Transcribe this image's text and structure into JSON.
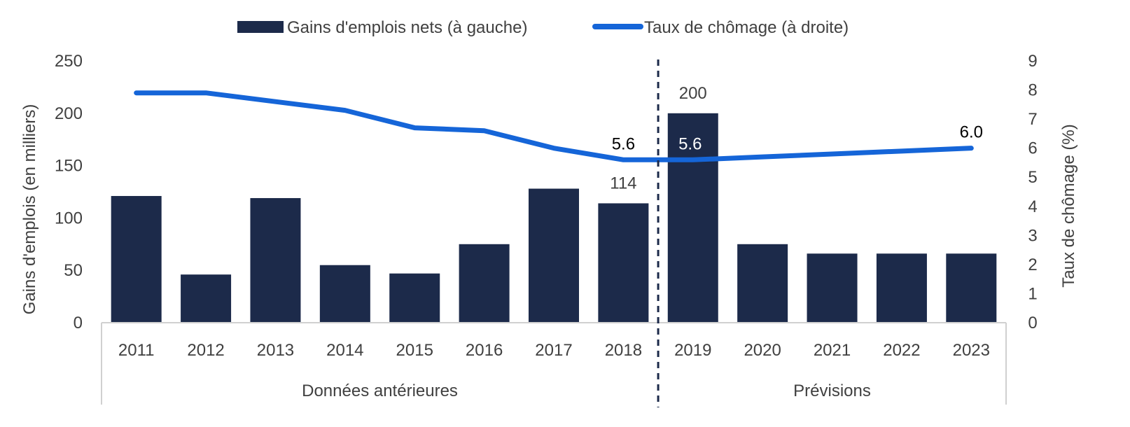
{
  "chart_data": {
    "type": "bar",
    "categories": [
      "2011",
      "2012",
      "2013",
      "2014",
      "2015",
      "2016",
      "2017",
      "2018",
      "2019",
      "2020",
      "2021",
      "2022",
      "2023"
    ],
    "series": [
      {
        "name": "Gains d'emplois nets (à gauche)",
        "type": "bar",
        "axis": "left",
        "color": "#1c2a4a",
        "values": [
          121,
          46,
          119,
          55,
          47,
          75,
          128,
          114,
          200,
          75,
          66,
          66,
          66
        ]
      },
      {
        "name": "Taux de chômage (à droite)",
        "type": "line",
        "axis": "right",
        "color": "#1565d8",
        "values": [
          7.9,
          7.9,
          7.6,
          7.3,
          6.7,
          6.6,
          6.0,
          5.6,
          5.6,
          5.7,
          5.8,
          5.9,
          6.0
        ]
      }
    ],
    "ylabel": "Gains d'emplois  (en milliers)",
    "y2label": "Taux de chômage (%)",
    "ylim": [
      0,
      250
    ],
    "y_ticks": [
      "0",
      "50",
      "100",
      "150",
      "200",
      "250"
    ],
    "y2lim": [
      0,
      9
    ],
    "y2_ticks": [
      "0",
      "1",
      "2",
      "3",
      "4",
      "5",
      "6",
      "7",
      "8",
      "9"
    ],
    "groups": [
      {
        "label": "Données antérieures",
        "from": "2011",
        "to": "2018"
      },
      {
        "label": "Prévisions",
        "from": "2019",
        "to": "2023"
      }
    ],
    "bar_labels": [
      {
        "category": "2018",
        "text": "114"
      },
      {
        "category": "2019",
        "text": "200"
      }
    ],
    "line_labels": [
      {
        "category": "2018",
        "text": "5.6"
      },
      {
        "category": "2019",
        "text": "5.6"
      },
      {
        "category": "2023",
        "text": "6.0"
      }
    ],
    "divider_between": [
      "2018",
      "2019"
    ],
    "legend_position": "top-center",
    "grid": false
  }
}
